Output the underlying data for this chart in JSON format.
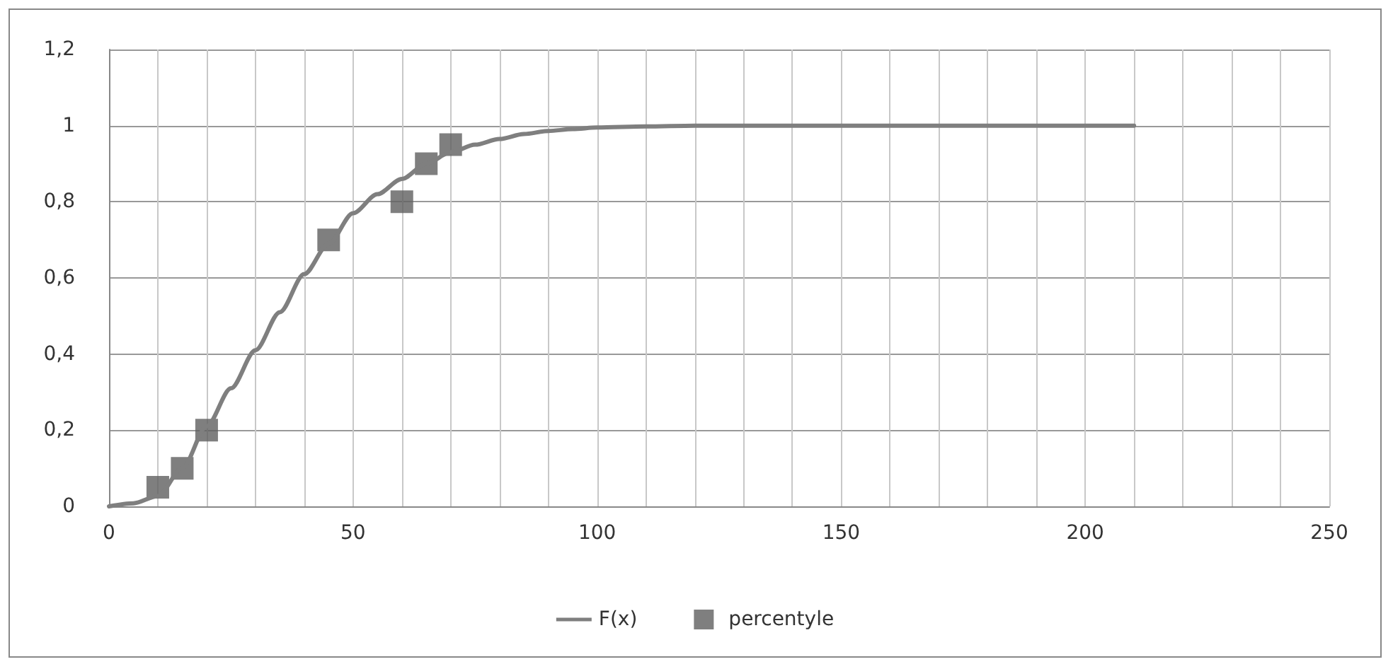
{
  "chart_data": {
    "type": "line",
    "xlim": [
      0,
      250
    ],
    "xticks": [
      0,
      {
        "value": 10,
        "label": null
      },
      {
        "value": 20,
        "label": null
      },
      {
        "value": 30,
        "label": null
      },
      {
        "value": 40,
        "label": null
      },
      50,
      {
        "value": 60,
        "label": null
      },
      {
        "value": 70,
        "label": null
      },
      {
        "value": 80,
        "label": null
      },
      {
        "value": 90,
        "label": null
      },
      100,
      {
        "value": 110,
        "label": null
      },
      {
        "value": 120,
        "label": null
      },
      {
        "value": 130,
        "label": null
      },
      {
        "value": 140,
        "label": null
      },
      150,
      {
        "value": 160,
        "label": null
      },
      {
        "value": 170,
        "label": null
      },
      {
        "value": 180,
        "label": null
      },
      {
        "value": 190,
        "label": null
      },
      200,
      {
        "value": 210,
        "label": null
      },
      {
        "value": 220,
        "label": null
      },
      {
        "value": 230,
        "label": null
      },
      {
        "value": 240,
        "label": null
      },
      250
    ],
    "ylim": [
      0,
      1.2
    ],
    "yticks": [
      0,
      {
        "value": 0.2,
        "label": "0,2"
      },
      {
        "value": 0.4,
        "label": "0,4"
      },
      {
        "value": 0.6,
        "label": "0,6"
      },
      {
        "value": 0.8,
        "label": "0,8"
      },
      1,
      {
        "value": 1.2,
        "label": "1,2"
      }
    ],
    "grid": true,
    "legend": "bottom",
    "series": [
      {
        "name": "F(x)",
        "color": "#7f7f7f",
        "marker": "none",
        "x": [
          0,
          5,
          10,
          15,
          20,
          25,
          30,
          35,
          40,
          45,
          50,
          55,
          60,
          65,
          70,
          75,
          80,
          85,
          90,
          95,
          100,
          110,
          120,
          150,
          180,
          210
        ],
        "values": [
          0,
          0.008,
          0.027,
          0.1,
          0.21,
          0.31,
          0.41,
          0.51,
          0.61,
          0.69,
          0.77,
          0.82,
          0.86,
          0.9,
          0.93,
          0.95,
          0.965,
          0.978,
          0.986,
          0.991,
          0.995,
          0.998,
          1,
          1,
          1,
          1
        ]
      },
      {
        "name": "percentyle",
        "type": "scatter",
        "color": "#5f5f5f",
        "marker": "square",
        "x": [
          10,
          15,
          20,
          45,
          60,
          65,
          70
        ],
        "values": [
          0.05,
          0.1,
          0.2,
          0.7,
          0.8,
          0.9,
          0.95
        ]
      }
    ]
  }
}
